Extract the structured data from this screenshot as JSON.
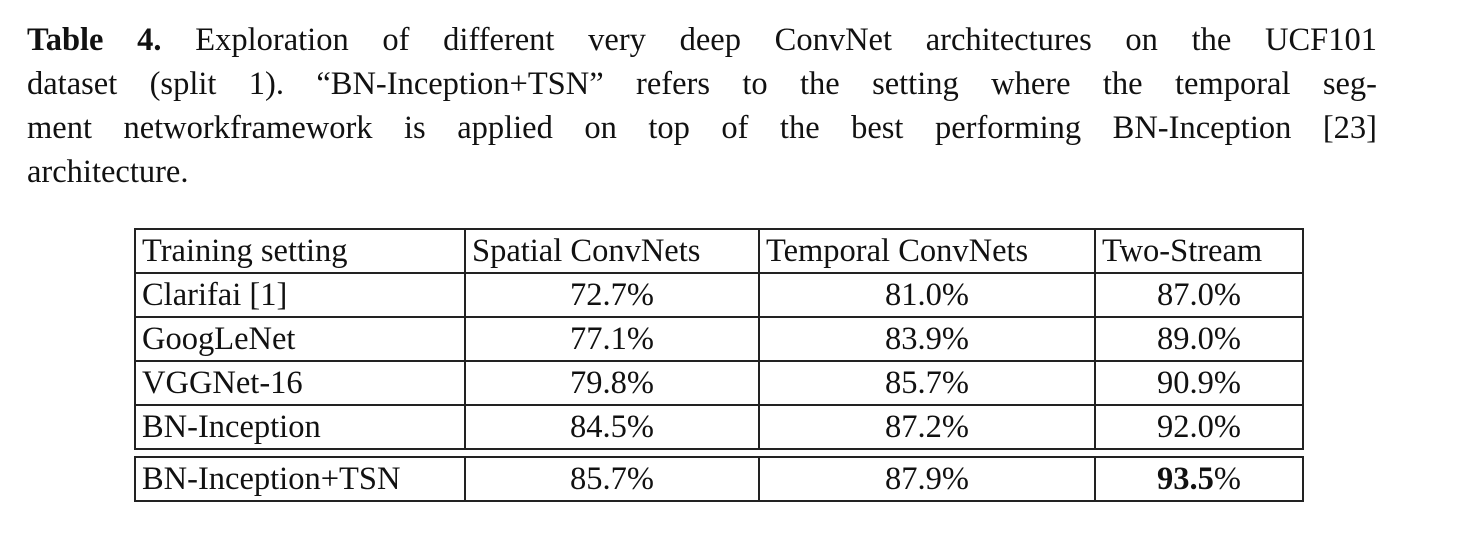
{
  "caption": {
    "label": "Table 4.",
    "lines": [
      " Exploration of different very deep ConvNet architectures on the UCF101",
      "dataset (split 1). “BN-Inception+TSN” refers to the setting where the temporal seg-",
      "ment networkframework is applied on top of the best performing BN-Inception [23]",
      "architecture."
    ]
  },
  "table": {
    "headers": [
      "Training setting",
      "Spatial ConvNets",
      "Temporal ConvNets",
      "Two-Stream"
    ],
    "rows": [
      {
        "setting": "Clarifai [1]",
        "spatial": "72.7%",
        "temporal": "81.0%",
        "two_stream": "87.0%"
      },
      {
        "setting": "GoogLeNet",
        "spatial": "77.1%",
        "temporal": "83.9%",
        "two_stream": "89.0%"
      },
      {
        "setting": "VGGNet-16",
        "spatial": "79.8%",
        "temporal": "85.7%",
        "two_stream": "90.9%"
      },
      {
        "setting": "BN-Inception",
        "spatial": "84.5%",
        "temporal": "87.2%",
        "two_stream": "92.0%"
      }
    ],
    "final_row": {
      "setting": "BN-Inception+TSN",
      "spatial": "85.7%",
      "temporal": "87.9%",
      "two_stream_bold": "93.5",
      "two_stream_suffix": "%"
    }
  }
}
